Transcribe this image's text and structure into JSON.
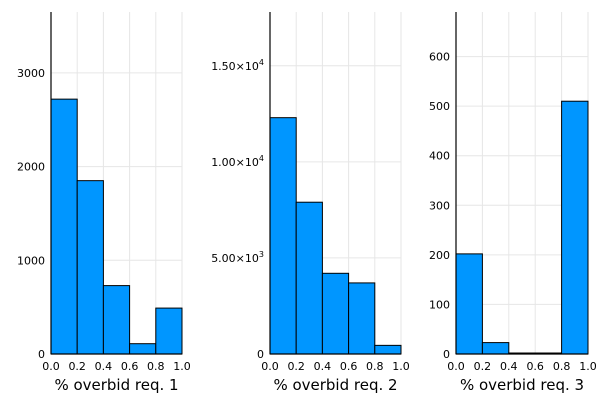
{
  "chart_data": [
    {
      "type": "bar",
      "xlabel": "% overbid req. 1",
      "xlim": [
        0,
        1
      ],
      "xticks": [
        "0.0",
        "0.2",
        "0.4",
        "0.6",
        "0.8",
        "1.0"
      ],
      "ylim": [
        0,
        3650
      ],
      "yticks": [
        0,
        1000,
        2000,
        3000
      ],
      "ytick_labels": [
        "0",
        "1000",
        "2000",
        "3000"
      ],
      "grid": true,
      "bins": [
        [
          0,
          0.2
        ],
        [
          0.2,
          0.4
        ],
        [
          0.4,
          0.6
        ],
        [
          0.6,
          0.8
        ],
        [
          0.8,
          1.0
        ]
      ],
      "values": [
        2720,
        1850,
        730,
        110,
        490
      ],
      "color": "#0096ff"
    },
    {
      "type": "bar",
      "xlabel": "% overbid req. 2",
      "xlim": [
        0,
        1
      ],
      "xticks": [
        "0.0",
        "0.2",
        "0.4",
        "0.6",
        "0.8",
        "1.0"
      ],
      "ylim": [
        0,
        17800
      ],
      "yticks": [
        0,
        5000,
        10000,
        15000
      ],
      "ytick_labels": [
        {
          "m": "0",
          "e": ""
        },
        {
          "m": "5.00×10",
          "e": "3"
        },
        {
          "m": "1.00×10",
          "e": "4"
        },
        {
          "m": "1.50×10",
          "e": "4"
        }
      ],
      "grid": true,
      "bins": [
        [
          0,
          0.2
        ],
        [
          0.2,
          0.4
        ],
        [
          0.4,
          0.6
        ],
        [
          0.6,
          0.8
        ],
        [
          0.8,
          1.0
        ]
      ],
      "values": [
        12300,
        7900,
        4200,
        3700,
        450
      ],
      "color": "#0096ff"
    },
    {
      "type": "bar",
      "xlabel": "% overbid req. 3",
      "xlim": [
        0,
        1
      ],
      "xticks": [
        "0.0",
        "0.2",
        "0.4",
        "0.6",
        "0.8",
        "1.0"
      ],
      "ylim": [
        0,
        690
      ],
      "yticks": [
        0,
        100,
        200,
        300,
        400,
        500,
        600
      ],
      "ytick_labels": [
        "0",
        "100",
        "200",
        "300",
        "400",
        "500",
        "600"
      ],
      "grid": true,
      "bins": [
        [
          0,
          0.2
        ],
        [
          0.2,
          0.4
        ],
        [
          0.4,
          0.6
        ],
        [
          0.6,
          0.8
        ],
        [
          0.8,
          1.0
        ]
      ],
      "values": [
        202,
        23,
        2,
        2,
        510
      ],
      "color": "#0096ff"
    }
  ]
}
